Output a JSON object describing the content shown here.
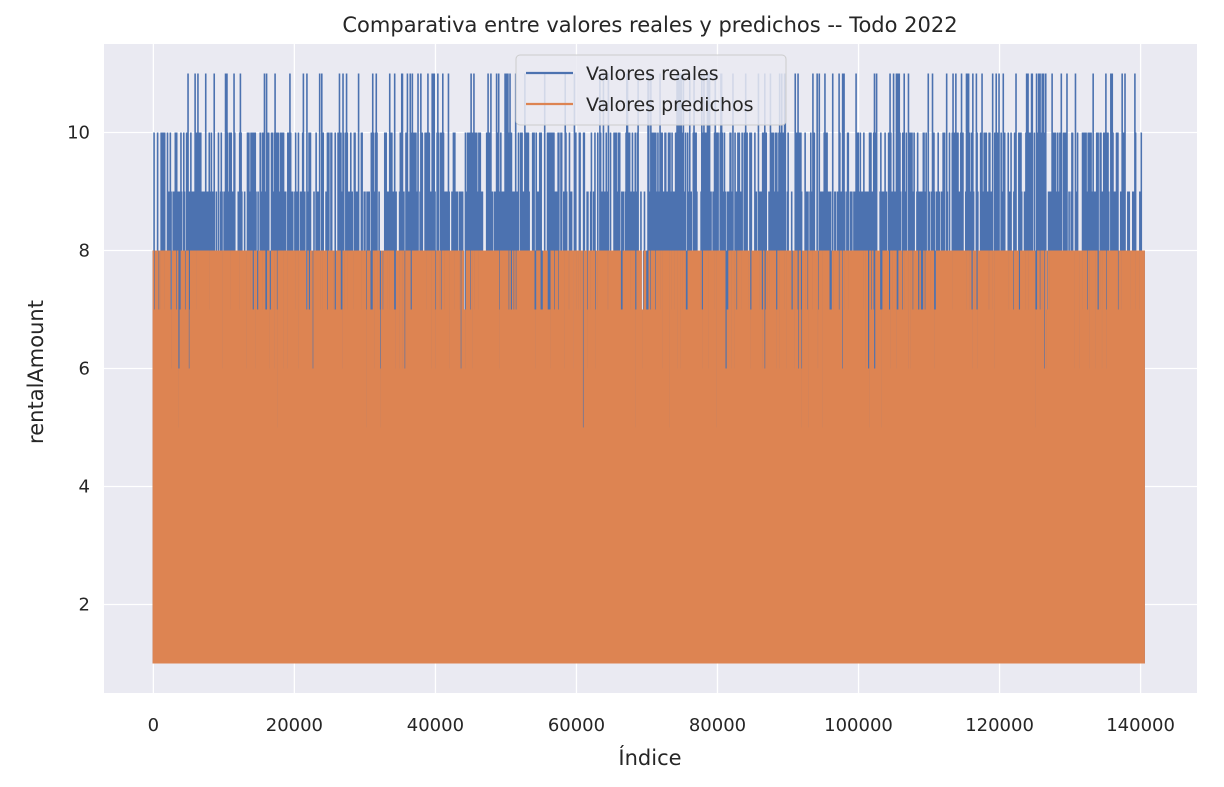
{
  "chart_data": {
    "type": "line",
    "title": "Comparativa entre valores reales y predichos -- Todo 2022",
    "xlabel": "Índice",
    "ylabel": "rentalAmount",
    "xlim": [
      -7000,
      148000
    ],
    "ylim": [
      0.5,
      11.5
    ],
    "xticks": [
      0,
      20000,
      40000,
      60000,
      80000,
      100000,
      120000,
      140000
    ],
    "yticks": [
      2,
      4,
      6,
      8,
      10
    ],
    "grid": true,
    "legend_position": "top-center",
    "background_color": "#eaeaf2",
    "grid_color": "#ffffff",
    "series": [
      {
        "name": "Valores reales",
        "color": "#4c72b0",
        "x_range": [
          0,
          140500
        ],
        "y_min": 1,
        "y_max": 11
      },
      {
        "name": "Valores predichos",
        "color": "#dd8452",
        "x_range": [
          0,
          140500
        ],
        "y_min": 1,
        "y_max": 8
      }
    ]
  }
}
